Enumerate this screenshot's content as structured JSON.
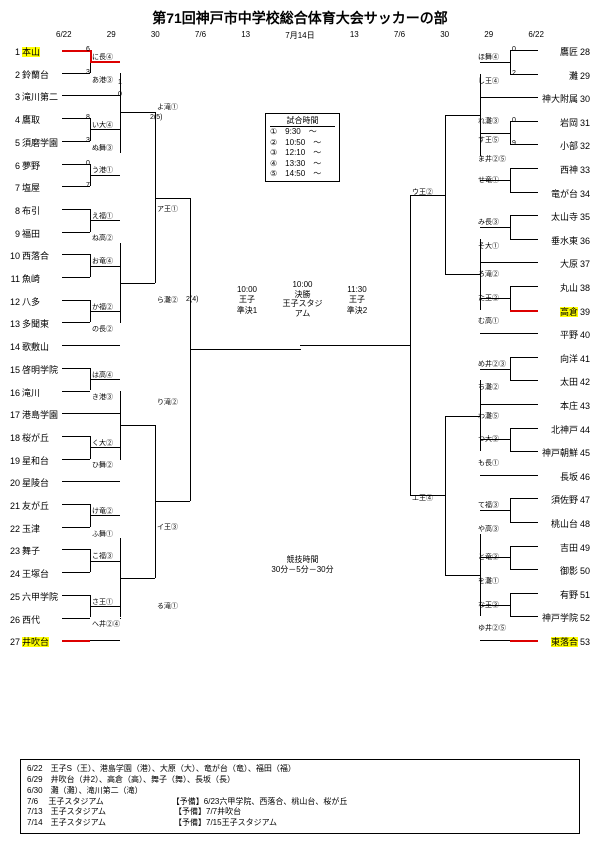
{
  "title": "第71回神戸市中学校総合体育大会サッカーの部",
  "dates_left": [
    "6/22",
    "29",
    "30",
    "7/6",
    "13",
    "7月14日",
    "13",
    "7/6",
    "30",
    "29",
    "6/22"
  ],
  "left_teams": [
    {
      "n": "1",
      "name": "本山",
      "hl": true
    },
    {
      "n": "2",
      "name": "鈴蘭台"
    },
    {
      "n": "3",
      "name": "滝川第二"
    },
    {
      "n": "4",
      "name": "鷹取"
    },
    {
      "n": "5",
      "name": "須磨学園"
    },
    {
      "n": "6",
      "name": "夢野"
    },
    {
      "n": "7",
      "name": "塩屋"
    },
    {
      "n": "8",
      "name": "布引"
    },
    {
      "n": "9",
      "name": "福田"
    },
    {
      "n": "10",
      "name": "西落合"
    },
    {
      "n": "11",
      "name": "魚崎"
    },
    {
      "n": "12",
      "name": "八多"
    },
    {
      "n": "13",
      "name": "多聞東"
    },
    {
      "n": "14",
      "name": "歌敷山"
    },
    {
      "n": "15",
      "name": "啓明学院"
    },
    {
      "n": "16",
      "name": "滝川"
    },
    {
      "n": "17",
      "name": "港島学園"
    },
    {
      "n": "18",
      "name": "桜が丘"
    },
    {
      "n": "19",
      "name": "星和台"
    },
    {
      "n": "20",
      "name": "星陵台"
    },
    {
      "n": "21",
      "name": "友が丘"
    },
    {
      "n": "22",
      "name": "玉津"
    },
    {
      "n": "23",
      "name": "舞子"
    },
    {
      "n": "24",
      "name": "王塚台"
    },
    {
      "n": "25",
      "name": "六甲学院"
    },
    {
      "n": "26",
      "name": "西代"
    },
    {
      "n": "27",
      "name": "井吹台",
      "hl": true
    }
  ],
  "right_teams": [
    {
      "n": "28",
      "name": "鷹匠"
    },
    {
      "n": "29",
      "name": "灘"
    },
    {
      "n": "30",
      "name": "神大附属"
    },
    {
      "n": "31",
      "name": "岩岡"
    },
    {
      "n": "32",
      "name": "小部"
    },
    {
      "n": "33",
      "name": "西神"
    },
    {
      "n": "34",
      "name": "竜が台"
    },
    {
      "n": "35",
      "name": "太山寺"
    },
    {
      "n": "36",
      "name": "垂水東"
    },
    {
      "n": "37",
      "name": "大原"
    },
    {
      "n": "38",
      "name": "丸山"
    },
    {
      "n": "39",
      "name": "高倉",
      "hl": true
    },
    {
      "n": "40",
      "name": "平野"
    },
    {
      "n": "41",
      "name": "向洋"
    },
    {
      "n": "42",
      "name": "太田"
    },
    {
      "n": "43",
      "name": "本庄"
    },
    {
      "n": "44",
      "name": "北神戸"
    },
    {
      "n": "45",
      "name": "神戸朝鮮"
    },
    {
      "n": "46",
      "name": "長坂"
    },
    {
      "n": "47",
      "name": "須佐野"
    },
    {
      "n": "48",
      "name": "桃山台"
    },
    {
      "n": "49",
      "name": "吉田"
    },
    {
      "n": "50",
      "name": "御影"
    },
    {
      "n": "51",
      "name": "有野"
    },
    {
      "n": "52",
      "name": "神戸学院"
    },
    {
      "n": "53",
      "name": "東落合",
      "hl": true
    }
  ],
  "r1_labels_left": [
    "に長④",
    "あ港③",
    "い大④",
    "ぬ舞③",
    "う港①",
    "え福①",
    "ね高②",
    "お竜④",
    "か福②",
    "の長②",
    "は高④",
    "き港③",
    "く大②",
    "ひ舞②",
    "け竜②",
    "ふ舞①",
    "こ福③",
    "さ王①",
    "へ井②④"
  ],
  "r2_labels_left": [
    "よ滝①",
    "ア王①",
    "ら灘②",
    "り滝②",
    "イ王③",
    "る滝①"
  ],
  "r1_labels_right": [
    "ほ舞④",
    "し王④",
    "れ灘③",
    "す王⑤",
    "ま井②⑤",
    "せ竜①",
    "み長③",
    "そ大①",
    "ろ滝②",
    "た王②",
    "む高①",
    "め井②③",
    "ち灘②",
    "わ灘⑤",
    "つ大③",
    "も長①",
    "て福③",
    "や高③",
    "と竜③",
    "を灘①",
    "な王③",
    "ゆ井②⑤"
  ],
  "r2_labels_right": [
    "ウ王②",
    "エ王④"
  ],
  "time_box": {
    "header": "試合時間",
    "rows": [
      "①　9:30　～",
      "②　10:50　～",
      "③　12:10　～",
      "④　13:30　～",
      "⑤　14:50　～"
    ]
  },
  "final": {
    "t1": "10:00",
    "l1": "決勝",
    "l2": "王子スタジアム"
  },
  "semi1": {
    "t": "10:00",
    "l": "王子",
    "s": "準決1"
  },
  "semi2": {
    "t": "11:30",
    "l": "王子",
    "s": "準決2"
  },
  "comp_time": "競技時間\n30分－5分－30分",
  "schedule": [
    "6/22　王子S（王）、港島学園（港）、大原（大）、竜が台（竜）、福田（福）",
    "6/29　井吹台（井2）、高倉（高）、舞子（舞）、長坂（長）",
    "6/30　灘（灘）、滝川第二（滝）",
    "7/6　 王子スタジアム　　　　　　　　　【予備】6/23六甲学院、西落合、桃山台、桜が丘",
    "7/13　王子スタジアム　　　　　　　　　【予備】7/7井吹台",
    "7/14　王子スタジアム　　　　　　　　　【予備】7/15王子スタジアム"
  ],
  "colors": {
    "hl": "#ffff00",
    "win": "#d00000",
    "line": "#000000"
  }
}
